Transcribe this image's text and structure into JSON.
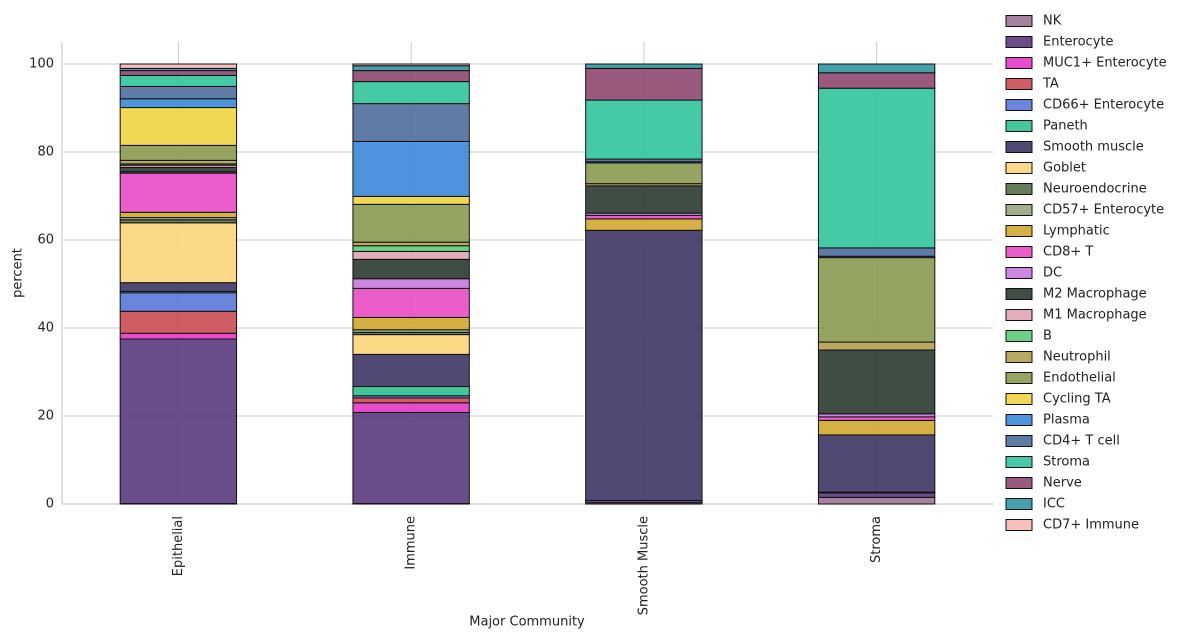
{
  "chart_data": {
    "type": "stacked-bar",
    "x_label": "Major Community",
    "y_label": "percent",
    "categories": [
      "Epithelial",
      "Immune",
      "Smooth Muscle",
      "Stroma"
    ],
    "ylim": [
      0,
      105
    ],
    "yticks": [
      0,
      20,
      40,
      60,
      80,
      100
    ],
    "grid": true,
    "legend": "right",
    "series": [
      {
        "name": "NK",
        "color": "#9b7494",
        "values": [
          0.1,
          0.1,
          0.3,
          1.5
        ]
      },
      {
        "name": "Enterocyte",
        "color": "#5a3a7e",
        "values": [
          37.4,
          20.7,
          0.5,
          1.0
        ]
      },
      {
        "name": "MUC1+ Enterocyte",
        "color": "#e638c8",
        "values": [
          1.3,
          2.2,
          0,
          0.1
        ]
      },
      {
        "name": "TA",
        "color": "#c94c52",
        "values": [
          5,
          1.1,
          0,
          0.1
        ]
      },
      {
        "name": "CD66+ Enterocyte",
        "color": "#5a78d8",
        "values": [
          4.2,
          0.5,
          0,
          0
        ]
      },
      {
        "name": "Paneth",
        "color": "#30c090",
        "values": [
          0.3,
          2.1,
          0,
          0
        ]
      },
      {
        "name": "Smooth muscle",
        "color": "#3c3564",
        "values": [
          2,
          7.3,
          61.4,
          13
        ]
      },
      {
        "name": "Goblet",
        "color": "#fcd57a",
        "values": [
          13.6,
          4.5,
          0,
          0
        ]
      },
      {
        "name": "Neuroendocrine",
        "color": "#56704a",
        "values": [
          0.7,
          0.5,
          0,
          0
        ]
      },
      {
        "name": "CD57+ Enterocyte",
        "color": "#98a67c",
        "values": [
          0.5,
          0.6,
          0,
          0
        ]
      },
      {
        "name": "Lymphatic",
        "color": "#d0a830",
        "values": [
          1.2,
          2.8,
          2.6,
          3.3
        ]
      },
      {
        "name": "CD8+ T",
        "color": "#e84bc4",
        "values": [
          8.9,
          6.6,
          0.8,
          0.8
        ]
      },
      {
        "name": "DC",
        "color": "#c77ae0",
        "values": [
          0.3,
          2.2,
          0.5,
          0.7
        ]
      },
      {
        "name": "M2 Macrophage",
        "color": "#2b3a30",
        "values": [
          1,
          4.4,
          6.2,
          14.5
        ]
      },
      {
        "name": "M1 Macrophage",
        "color": "#e0a4b4",
        "values": [
          0.5,
          1.8,
          0,
          0
        ]
      },
      {
        "name": "B",
        "color": "#5ccc78",
        "values": [
          0.3,
          1.3,
          0,
          0
        ]
      },
      {
        "name": "Neutrophil",
        "color": "#b29e50",
        "values": [
          0.8,
          0.8,
          0.5,
          1.8
        ]
      },
      {
        "name": "Endothelial",
        "color": "#8a9a50",
        "values": [
          3.4,
          8.6,
          4.7,
          19.2
        ]
      },
      {
        "name": "Cycling TA",
        "color": "#f0d440",
        "values": [
          8.6,
          1.8,
          0,
          0
        ]
      },
      {
        "name": "Plasma",
        "color": "#3a88d8",
        "values": [
          2,
          12.5,
          0.3,
          0.3
        ]
      },
      {
        "name": "CD4+ T cell",
        "color": "#4c6e9c",
        "values": [
          2.8,
          8.6,
          0.6,
          1.9
        ]
      },
      {
        "name": "Stroma",
        "color": "#30c49a",
        "values": [
          2.5,
          5,
          13.4,
          36.3
        ]
      },
      {
        "name": "Nerve",
        "color": "#8e4870",
        "values": [
          1.1,
          2.5,
          7.2,
          3.5
        ]
      },
      {
        "name": "ICC",
        "color": "#3096a0",
        "values": [
          0.5,
          1.1,
          1.0,
          2.0
        ]
      },
      {
        "name": "CD7+ Immune",
        "color": "#f8b8b8",
        "values": [
          1.0,
          0.4,
          0,
          0
        ]
      }
    ]
  }
}
